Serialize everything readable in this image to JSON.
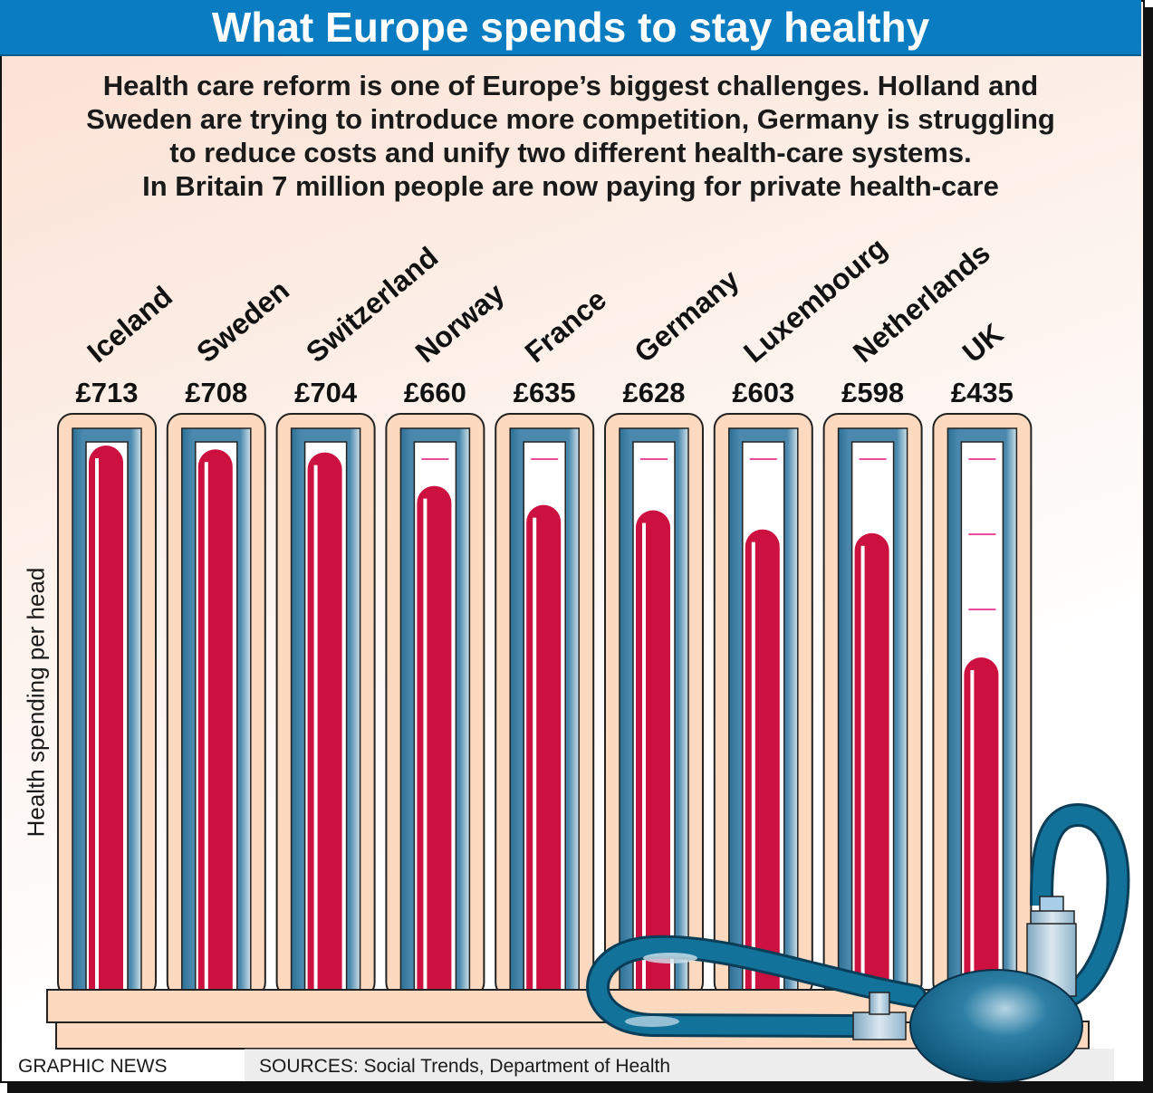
{
  "header": {
    "title": "What Europe spends to stay healthy",
    "subtitle_lines": [
      "Health care reform is one of Europe’s biggest challenges. Holland and",
      "Sweden are trying to introduce more competition, Germany is struggling",
      "to reduce costs and unify two different health-care systems.",
      "In Britain 7 million people are now paying for private health-care"
    ]
  },
  "footer": {
    "credit": "GRAPHIC NEWS",
    "sources": "SOURCES: Social Trends, Department of Health"
  },
  "colors": {
    "title_bar": "#0a7cc2",
    "mercury": "#cc1040",
    "tube_frame": "#fcd9bf",
    "tube_blue": "#3a7fa3",
    "pump": "#0e6a8e",
    "tick": "#e0127a"
  },
  "icons": {
    "decoration": "blood-pressure-pump-icon"
  },
  "chart_data": {
    "type": "bar",
    "title": "What Europe spends to stay healthy",
    "ylabel": "Health spending per head",
    "xlabel": "",
    "unit": "GBP",
    "categories": [
      "Iceland",
      "Sweden",
      "Switzerland",
      "Norway",
      "France",
      "Germany",
      "Luxembourg",
      "Netherlands",
      "UK"
    ],
    "values": [
      713,
      708,
      704,
      660,
      635,
      628,
      603,
      598,
      435
    ],
    "value_labels": [
      "£713",
      "£708",
      "£704",
      "£660",
      "£635",
      "£628",
      "£603",
      "£598",
      "£435"
    ],
    "ylim": [
      0,
      730
    ],
    "grid": false,
    "legend": "none"
  }
}
